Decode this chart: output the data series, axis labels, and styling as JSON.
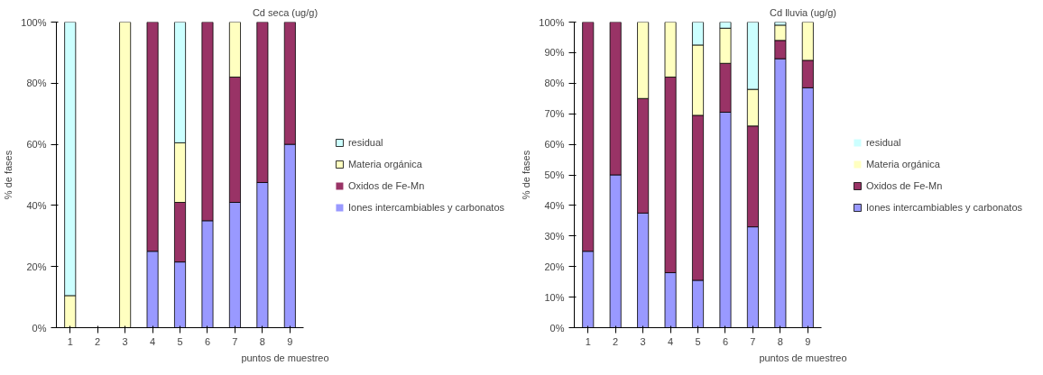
{
  "chart_data": [
    {
      "type": "bar",
      "stacked": true,
      "title": "Cd seca (ug/g)",
      "xlabel": "puntos de muestreo",
      "ylabel": "% de fases",
      "categories": [
        "1",
        "2",
        "3",
        "4",
        "5",
        "6",
        "7",
        "8",
        "9"
      ],
      "series": [
        {
          "name": "Iones intercambiables y carbonatos",
          "color": "#9999ff",
          "values": [
            0,
            0,
            0,
            25,
            21.5,
            35,
            41,
            47.5,
            60
          ]
        },
        {
          "name": "Oxidos de Fe-Mn",
          "color": "#993366",
          "values": [
            0,
            0,
            0,
            75,
            19.5,
            65,
            41,
            52.5,
            40
          ]
        },
        {
          "name": "Materia orgánica",
          "color": "#ffffc0",
          "values": [
            10.5,
            0,
            100,
            0,
            19.5,
            0,
            18,
            0,
            0
          ]
        },
        {
          "name": "residual",
          "color": "#ccffff",
          "values": [
            89.5,
            0,
            0,
            0,
            39.5,
            0,
            0,
            0,
            0
          ]
        }
      ],
      "ylim": [
        0,
        100
      ],
      "yticks": [
        {
          "value": 0,
          "label": "0%"
        },
        {
          "value": 20,
          "label": "20%"
        },
        {
          "value": 40,
          "label": "40%"
        },
        {
          "value": 60,
          "label": "60%"
        },
        {
          "value": 80,
          "label": "80%"
        },
        {
          "value": 100,
          "label": "100%"
        }
      ],
      "grid": false,
      "legend": "right"
    },
    {
      "type": "bar",
      "stacked": true,
      "title": "Cd lluvia (ug/g)",
      "xlabel": "puntos de muestreo",
      "ylabel": "% de fases",
      "categories": [
        "1",
        "2",
        "3",
        "4",
        "5",
        "6",
        "7",
        "8",
        "9"
      ],
      "series": [
        {
          "name": "Iones intercambiables y carbonatos",
          "color": "#9999ff",
          "values": [
            25,
            50,
            37.5,
            18,
            15.5,
            70.5,
            33,
            88,
            78.5
          ]
        },
        {
          "name": "Oxidos de Fe-Mn",
          "color": "#993366",
          "values": [
            75,
            50,
            37.5,
            64,
            54,
            16,
            33,
            6,
            9
          ]
        },
        {
          "name": "Materia orgánica",
          "color": "#ffffc0",
          "values": [
            0,
            0,
            25,
            18,
            23,
            11.5,
            12,
            5,
            12.5
          ]
        },
        {
          "name": "residual",
          "color": "#ccffff",
          "values": [
            0,
            0,
            0,
            0,
            7.5,
            2,
            22,
            1,
            0
          ]
        }
      ],
      "ylim": [
        0,
        100
      ],
      "yticks": [
        {
          "value": 0,
          "label": "0%"
        },
        {
          "value": 10,
          "label": "10%"
        },
        {
          "value": 20,
          "label": "20%"
        },
        {
          "value": 30,
          "label": "30%"
        },
        {
          "value": 40,
          "label": "40%"
        },
        {
          "value": 50,
          "label": "50%"
        },
        {
          "value": 60,
          "label": "60%"
        },
        {
          "value": 70,
          "label": "70%"
        },
        {
          "value": 80,
          "label": "80%"
        },
        {
          "value": 90,
          "label": "90%"
        },
        {
          "value": 100,
          "label": "100%"
        }
      ],
      "grid": false,
      "legend": "right"
    }
  ]
}
